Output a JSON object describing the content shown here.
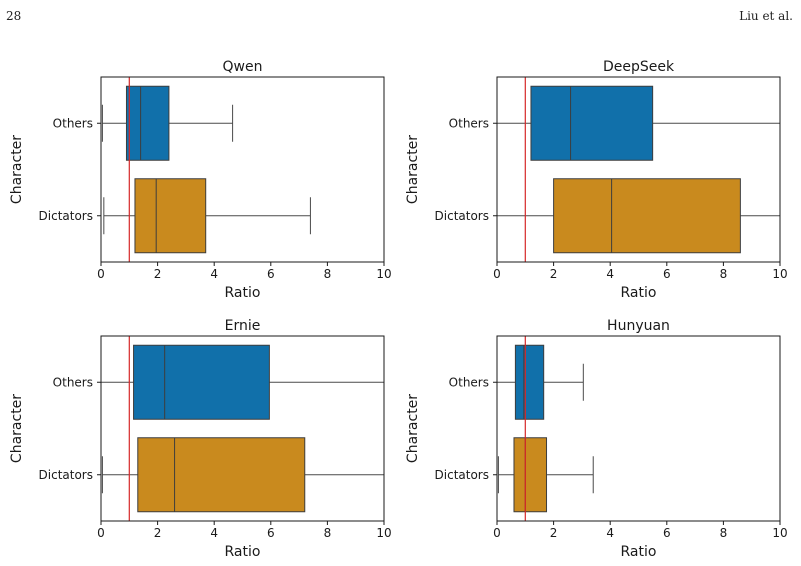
{
  "header": {
    "page_number": "28",
    "authors": "Liu et al."
  },
  "colors": {
    "others": "#1170aa",
    "dictators": "#c98a1e",
    "reference_line": "#d62728"
  },
  "chart_data": [
    {
      "type": "box",
      "title": "Qwen",
      "xlabel": "Ratio",
      "ylabel": "Character",
      "xlim": [
        0,
        10
      ],
      "xticks": [
        "0",
        "2",
        "4",
        "6",
        "8",
        "10"
      ],
      "reference_line": 1,
      "categories": [
        "Others",
        "Dictators"
      ],
      "boxes": [
        {
          "name": "Others",
          "whisker_low": 0.05,
          "q1": 0.9,
          "median": 1.4,
          "q3": 2.4,
          "whisker_high": 4.65
        },
        {
          "name": "Dictators",
          "whisker_low": 0.1,
          "q1": 1.2,
          "median": 1.95,
          "q3": 3.7,
          "whisker_high": 7.4
        }
      ]
    },
    {
      "type": "box",
      "title": "DeepSeek",
      "xlabel": "Ratio",
      "ylabel": "Character",
      "xlim": [
        0,
        10
      ],
      "xticks": [
        "0",
        "2",
        "4",
        "6",
        "8",
        "10"
      ],
      "reference_line": 1,
      "categories": [
        "Others",
        "Dictators"
      ],
      "boxes": [
        {
          "name": "Others",
          "whisker_low": 0.0,
          "q1": 1.2,
          "median": 2.6,
          "q3": 5.5,
          "whisker_high": 10
        },
        {
          "name": "Dictators",
          "whisker_low": 0.0,
          "q1": 2.0,
          "median": 4.05,
          "q3": 8.6,
          "whisker_high": 10
        }
      ]
    },
    {
      "type": "box",
      "title": "Ernie",
      "xlabel": "Ratio",
      "ylabel": "Character",
      "xlim": [
        0,
        10
      ],
      "xticks": [
        "0",
        "2",
        "4",
        "6",
        "8",
        "10"
      ],
      "reference_line": 1,
      "categories": [
        "Others",
        "Dictators"
      ],
      "boxes": [
        {
          "name": "Others",
          "whisker_low": 0.0,
          "q1": 1.15,
          "median": 2.25,
          "q3": 5.95,
          "whisker_high": 10
        },
        {
          "name": "Dictators",
          "whisker_low": 0.05,
          "q1": 1.3,
          "median": 2.6,
          "q3": 7.2,
          "whisker_high": 10
        }
      ]
    },
    {
      "type": "box",
      "title": "Hunyuan",
      "xlabel": "Ratio",
      "ylabel": "Character",
      "xlim": [
        0,
        10
      ],
      "xticks": [
        "0",
        "2",
        "4",
        "6",
        "8",
        "10"
      ],
      "reference_line": 1,
      "categories": [
        "Others",
        "Dictators"
      ],
      "boxes": [
        {
          "name": "Others",
          "whisker_low": 0.0,
          "q1": 0.65,
          "median": 0.95,
          "q3": 1.65,
          "whisker_high": 3.05
        },
        {
          "name": "Dictators",
          "whisker_low": 0.05,
          "q1": 0.6,
          "median": 1.0,
          "q3": 1.75,
          "whisker_high": 3.4
        }
      ]
    }
  ]
}
